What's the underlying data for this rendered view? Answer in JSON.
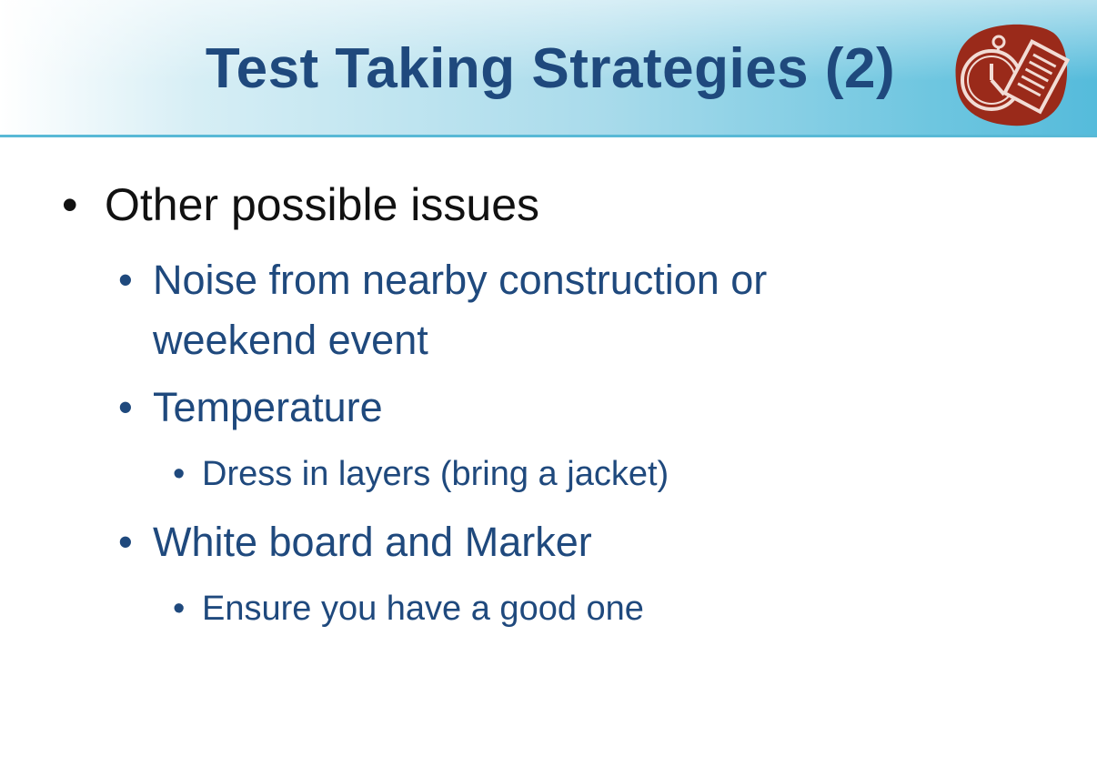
{
  "slide": {
    "title": "Test Taking Strategies (2)",
    "logo_icon": "stopwatch-document-icon",
    "colors": {
      "title": "#1f497d",
      "logo_bg": "#9a2a1a",
      "body_text": "#1f497d"
    }
  },
  "bullets": {
    "l1": {
      "marker": "•",
      "text": "Other possible issues"
    },
    "noise": {
      "marker": "•",
      "line1": "Noise from nearby construction or",
      "line2": "weekend event"
    },
    "temperature": {
      "marker": "•",
      "text": "Temperature"
    },
    "layers": {
      "marker": "•",
      "text": "Dress in layers (bring a jacket)"
    },
    "whiteboard": {
      "marker": "•",
      "text": "White board and Marker"
    },
    "good_one": {
      "marker": "•",
      "text": "Ensure you have a good one"
    }
  }
}
